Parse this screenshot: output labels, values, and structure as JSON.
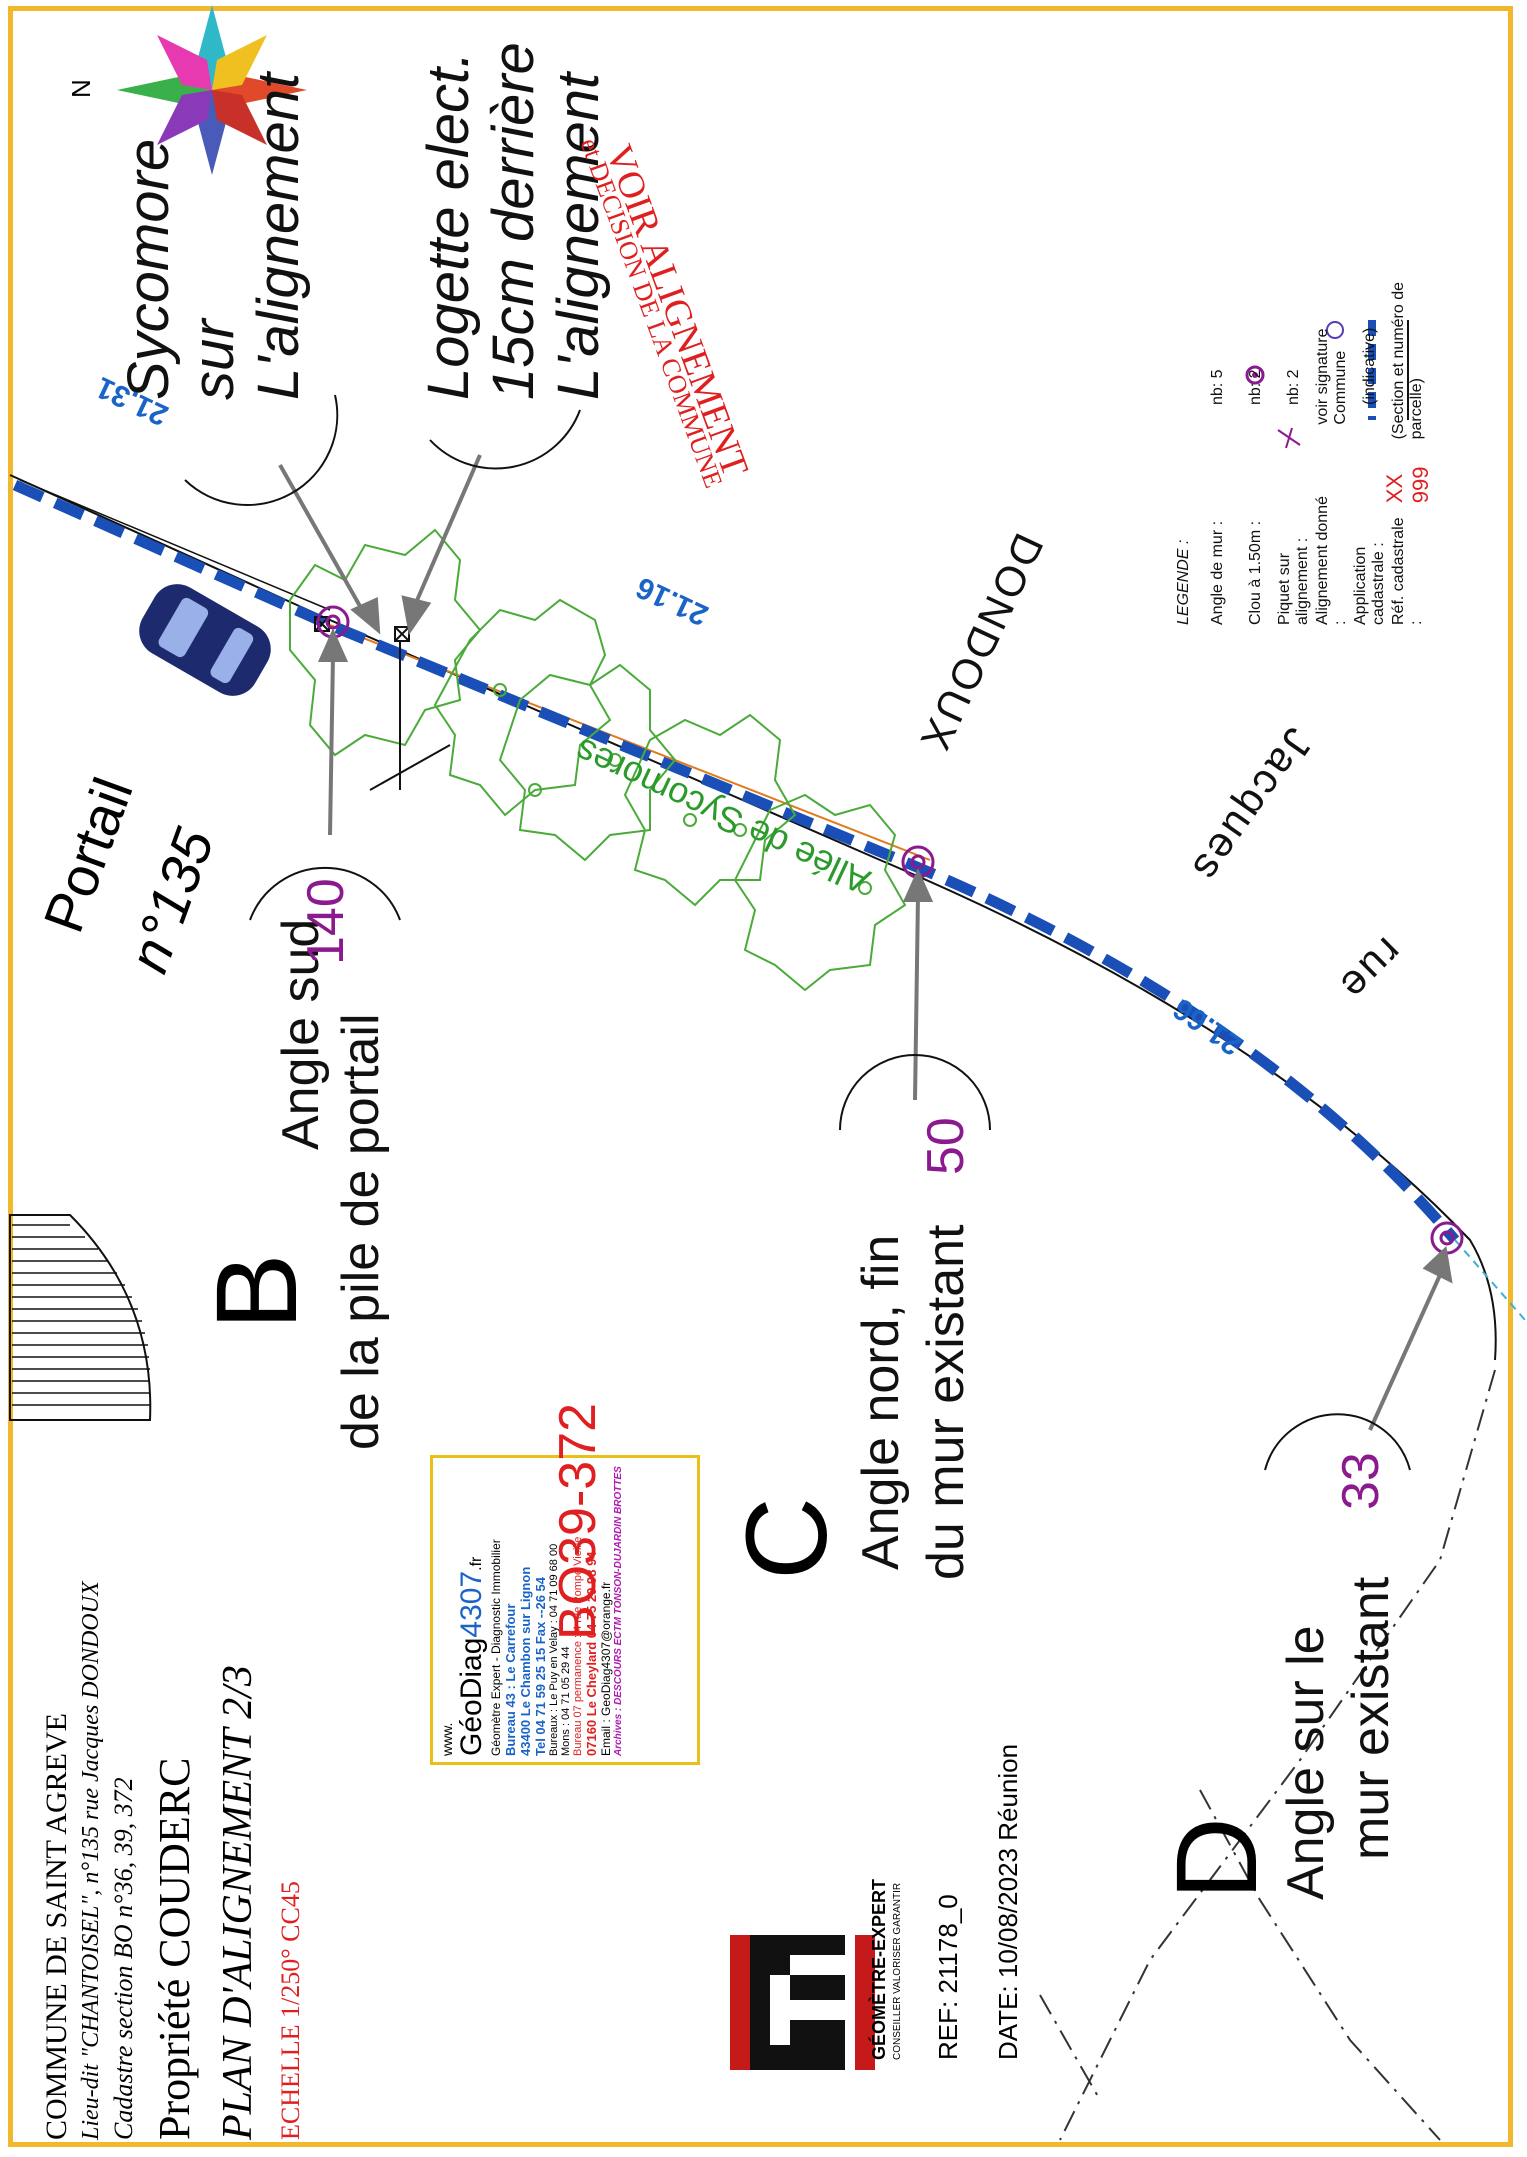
{
  "compass": {
    "north_label": "N"
  },
  "title_block": {
    "commune": "COMMUNE DE SAINT AGREVE",
    "lieu_dit": "Lieu-dit \"CHANTOISEL\", n°135 rue Jacques DONDOUX",
    "cadastre": "Cadastre section BO n°36, 39, 372",
    "propriete": "Propriété COUDERC",
    "plan_title": "PLAN D'ALIGNEMENT 2/3",
    "echelle": "ECHELLE  1/250°  CC45",
    "ref": "REF: 21178_0",
    "date": "DATE: 10/08/2023 Réunion",
    "geometre_title": "GÉOMÈTRE-EXPERT",
    "geometre_tagline": "CONSEILLER VALORISER GARANTIR"
  },
  "geodiag": {
    "www": "www.",
    "name": "GéoDiag",
    "number": "4307",
    "tld": ".fr",
    "subtitle": "Géomètre Expert - Diagnostic Immobilier",
    "bureau43": "Bureau 43 :  Le Carrefour",
    "address43": "43400 Le Chambon sur Lignon",
    "tel43": "Tel 04 71 59 25 15   Fax --26 54",
    "bureaux": "Bureaux : Le Puy en Velay : 04 71 09 68 00",
    "mons": "Mons : 04 71 05 29 44",
    "bureau07": "Bureau 07   permanence : 4 rue Pompe Vieille",
    "address07": "07160 Le Cheylard 04 75 29 98 94",
    "email": "Email : GeoDiag4307@orange.fr",
    "archives": "Archives : DESCOURS ECTM TONSON-DUJARDIN BROTTES"
  },
  "parcel_ref": "BO39-372",
  "points": {
    "B": {
      "letter": "B",
      "line1": "Angle sud",
      "line2": "de la pile de portail",
      "value": "140"
    },
    "C": {
      "letter": "C",
      "line1": "Angle nord, fin",
      "line2": "du mur existant",
      "value": "50"
    },
    "D": {
      "letter": "D",
      "line1": "Angle sur le",
      "line2": "mur existant",
      "value": "33"
    }
  },
  "portail": {
    "line1": "Portail",
    "line2": "n°135"
  },
  "callouts": {
    "sycomore": [
      "Sycomore",
      "sur",
      "L'alignement"
    ],
    "logette": [
      "Logette elect.",
      "15cm derrière",
      "L'alignement"
    ]
  },
  "red_note": {
    "line1": "VOIR ALIGNEMENT",
    "line2": "et DECISION DE LA COMMUNE"
  },
  "street": {
    "rue": "rue",
    "jacques": "Jacques",
    "dondoux": "DONDOUX"
  },
  "alley": "Allée de Sycomores",
  "distances": [
    "21.31",
    "21.16",
    "21.66"
  ],
  "legend": {
    "title": "LEGENDE :",
    "rows": [
      {
        "key": "Angle de mur :",
        "value": "nb: 5"
      },
      {
        "key": "Clou à 1.50m :",
        "value": "nb: 2"
      },
      {
        "key": "Piquet sur alignement :",
        "value": "nb: 2"
      },
      {
        "key": "Alignement donné :",
        "value": "voir signature Commune"
      },
      {
        "key": "Application cadastrale :",
        "value": "(indicative)"
      },
      {
        "key": "Réf. cadastrale :",
        "code": "XX 999",
        "value": "(Section et numéro de parcelle)"
      }
    ]
  },
  "colors": {
    "frame": "#f0b82a",
    "alignment": "#1a4fb8",
    "point": "#8a1a8e",
    "tree": "#4aaa3a",
    "red": "#e02020"
  }
}
